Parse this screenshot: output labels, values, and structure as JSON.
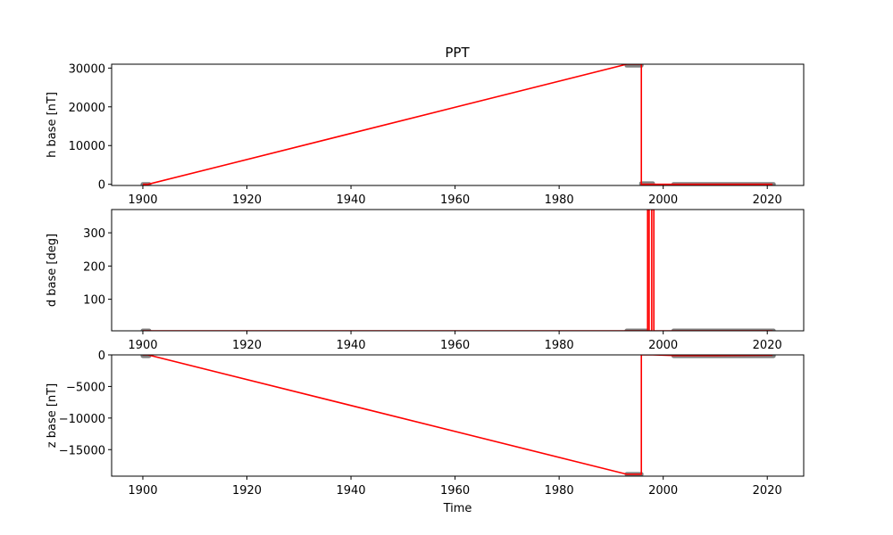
{
  "chart_data": [
    {
      "type": "line",
      "title": "PPT",
      "xlabel": "",
      "ylabel": "h base [nT]",
      "xlim": [
        1894,
        2027
      ],
      "ylim": [
        -300,
        31000
      ],
      "xticks": [
        1900,
        1920,
        1940,
        1960,
        1980,
        2000,
        2020
      ],
      "yticks": [
        0,
        10000,
        20000,
        30000
      ],
      "ytick_labels": [
        "0",
        "10000",
        "20000",
        "30000"
      ],
      "grid": false,
      "series": [
        {
          "color": "#ff0000",
          "points": [
            [
              1900,
              0
            ],
            [
              1901,
              0
            ],
            [
              1993,
              31000
            ],
            [
              1995.6,
              31000
            ],
            [
              1995.8,
              31000
            ],
            [
              1995.8,
              0
            ],
            [
              1996.5,
              0
            ],
            [
              1997.5,
              0
            ],
            [
              2002,
              0
            ],
            [
              2021,
              0
            ]
          ]
        }
      ],
      "markers": {
        "color": "#808080",
        "spans": [
          [
            1900,
            1901.2,
            0
          ],
          [
            1993,
            1995.8,
            30700
          ],
          [
            1995.8,
            1998,
            200
          ],
          [
            2002,
            2021.2,
            0
          ]
        ]
      }
    },
    {
      "type": "line",
      "title": "",
      "xlabel": "",
      "ylabel": "d base [deg]",
      "xlim": [
        1894,
        2027
      ],
      "ylim": [
        5,
        370
      ],
      "xticks": [
        1900,
        1920,
        1940,
        1960,
        1980,
        2000,
        2020
      ],
      "yticks": [
        100,
        200,
        300
      ],
      "ytick_labels": [
        "100",
        "200",
        "300"
      ],
      "grid": false,
      "series": [
        {
          "color": "#ff0000",
          "points": [
            [
              1900,
              5
            ],
            [
              1997,
              5
            ],
            [
              1997,
              370
            ],
            [
              1997.3,
              370
            ],
            [
              1997.3,
              5
            ],
            [
              1997.8,
              5
            ],
            [
              1997.8,
              370
            ],
            [
              1998.2,
              370
            ],
            [
              1998.2,
              5
            ],
            [
              2021,
              5
            ]
          ]
        }
      ],
      "markers": {
        "color": "#808080",
        "spans": [
          [
            1900,
            1901.2,
            5
          ],
          [
            1993,
            1996.8,
            5
          ],
          [
            2002,
            2021.2,
            5
          ]
        ]
      }
    },
    {
      "type": "line",
      "title": "",
      "xlabel": "Time",
      "ylabel": "z base [nT]",
      "xlim": [
        1894,
        2027
      ],
      "ylim": [
        -19200,
        0
      ],
      "xticks": [
        1900,
        1920,
        1940,
        1960,
        1980,
        2000,
        2020
      ],
      "yticks": [
        0,
        -5000,
        -10000,
        -15000
      ],
      "ytick_labels": [
        "0",
        "−5000",
        "−10000",
        "−15000"
      ],
      "grid": false,
      "series": [
        {
          "color": "#ff0000",
          "points": [
            [
              1900,
              0
            ],
            [
              1901,
              0
            ],
            [
              1993,
              -18900
            ],
            [
              1995.8,
              -18900
            ],
            [
              1995.8,
              0
            ],
            [
              1998,
              0
            ],
            [
              2002,
              -100
            ],
            [
              2010,
              -100
            ],
            [
              2021,
              -50
            ]
          ]
        }
      ],
      "markers": {
        "color": "#808080",
        "spans": [
          [
            1900,
            1901.2,
            -150
          ],
          [
            1993,
            1995.8,
            -18900
          ],
          [
            2002,
            2021.2,
            -150
          ]
        ]
      }
    }
  ]
}
